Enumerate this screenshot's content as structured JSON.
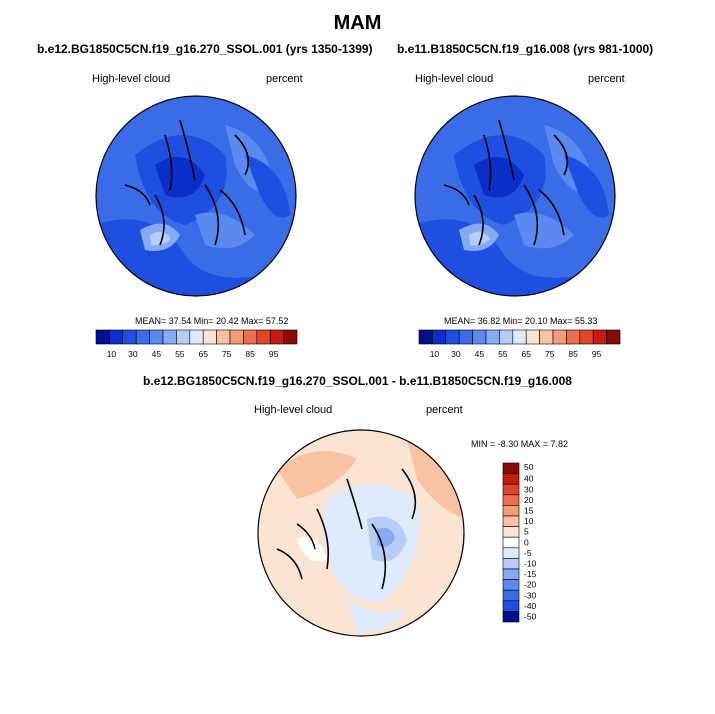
{
  "figure": {
    "title": "MAM"
  },
  "panels": [
    {
      "title": "b.e12.BG1850C5CN.f19_g16.270_SSOL.001 (yrs 1350-1399)",
      "left_label": "High-level cloud",
      "right_label": "percent",
      "stats": "MEAN=  37.54  Min=  20.42  Max=  57.52",
      "colorbar_ticks": [
        "10",
        "30",
        "45",
        "55",
        "65",
        "75",
        "85",
        "95"
      ]
    },
    {
      "title": "b.e11.B1850C5CN.f19_g16.008 (yrs 981-1000)",
      "left_label": "High-level cloud",
      "right_label": "percent",
      "stats": "MEAN=  36.82  Min=  20.10  Max=  55.33",
      "colorbar_ticks": [
        "10",
        "30",
        "45",
        "55",
        "65",
        "75",
        "85",
        "95"
      ]
    },
    {
      "title": "b.e12.BG1850C5CN.f19_g16.270_SSOL.001 - b.e11.B1850C5CN.f19_g16.008",
      "left_label": "High-level cloud",
      "right_label": "percent",
      "stats": "MIN =  -8.30 MAX =   7.82",
      "colorbar_ticks": [
        "50",
        "40",
        "30",
        "20",
        "15",
        "10",
        "5",
        "0",
        "-5",
        "-10",
        "-15",
        "-20",
        "-30",
        "-40",
        "-50"
      ]
    }
  ],
  "colors": {
    "abs_scale": [
      "#00108c",
      "#0a2fc8",
      "#1f4fe0",
      "#3a6ce8",
      "#5a8af0",
      "#86aaf4",
      "#b6cdf8",
      "#dfeafc",
      "#fce4d2",
      "#f9c2a2",
      "#f49c78",
      "#ec6e4c",
      "#e0442a",
      "#c41c10",
      "#8a0a04"
    ],
    "diff_scale": [
      "#8a0a04",
      "#c41c10",
      "#e0442a",
      "#ec6e4c",
      "#f49c78",
      "#f9c2a2",
      "#fce4d2",
      "#ffffff",
      "#dfeafc",
      "#b6cdf8",
      "#86aaf4",
      "#5a8af0",
      "#3a6ce8",
      "#1f4fe0",
      "#00108c"
    ]
  }
}
